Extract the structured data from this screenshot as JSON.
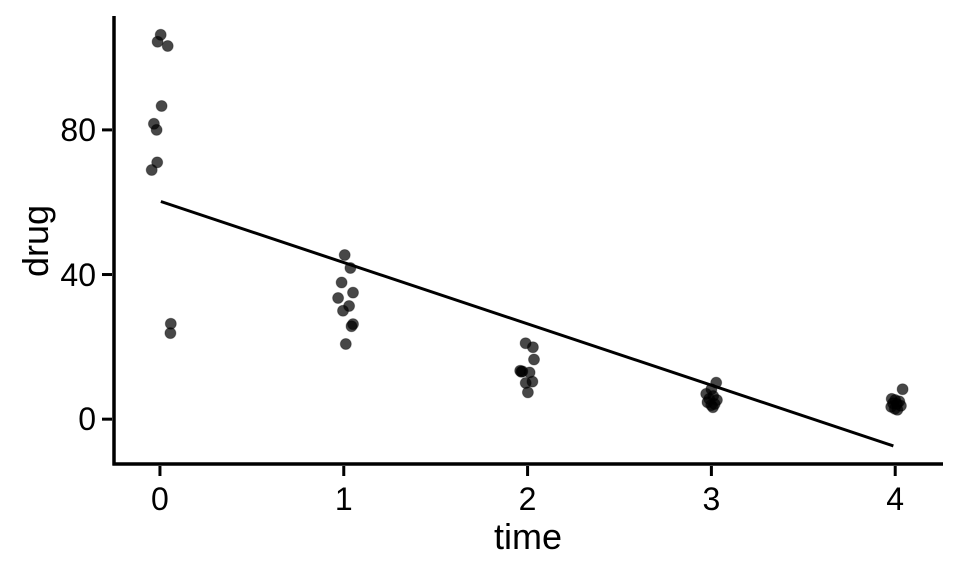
{
  "figure": {
    "background": "#ffffff"
  },
  "chart_data": {
    "type": "scatter",
    "title": "",
    "xlabel": "time",
    "ylabel": "drug",
    "x_ticks": [
      0,
      1,
      2,
      3,
      4
    ],
    "y_ticks": [
      0,
      40,
      80
    ],
    "xlim": [
      -0.25,
      4.26
    ],
    "ylim": [
      -12.4,
      111.5
    ],
    "grid": "off",
    "legend": "none",
    "axis_color": "#000000",
    "label_color": "#000000",
    "point_color": "#000000",
    "point_opacity": 0.72,
    "point_radius": 5.5,
    "fit_line": {
      "x1": 0.005,
      "y1": 60.2,
      "x2": 3.99,
      "y2": -7.4,
      "color": "#000000",
      "width": 3
    },
    "points": [
      [
        0.004,
        106.3
      ],
      [
        -0.013,
        104.4
      ],
      [
        0.042,
        103.2
      ],
      [
        0.009,
        86.6
      ],
      [
        -0.033,
        81.7
      ],
      [
        -0.018,
        80.0
      ],
      [
        -0.015,
        71.0
      ],
      [
        -0.045,
        68.9
      ],
      [
        0.059,
        26.4
      ],
      [
        0.057,
        23.8
      ],
      [
        1.005,
        45.4
      ],
      [
        1.036,
        41.8
      ],
      [
        0.988,
        37.8
      ],
      [
        1.05,
        35.0
      ],
      [
        0.969,
        33.5
      ],
      [
        1.029,
        31.3
      ],
      [
        0.996,
        30.0
      ],
      [
        1.05,
        26.3
      ],
      [
        1.042,
        25.7
      ],
      [
        1.011,
        20.8
      ],
      [
        1.989,
        21.0
      ],
      [
        2.029,
        19.9
      ],
      [
        2.035,
        16.5
      ],
      [
        1.96,
        13.4
      ],
      [
        1.972,
        13.2
      ],
      [
        1.966,
        13.1
      ],
      [
        2.011,
        12.9
      ],
      [
        2.026,
        10.4
      ],
      [
        1.99,
        10.0
      ],
      [
        2.002,
        7.4
      ],
      [
        3.026,
        10.1
      ],
      [
        3.0,
        8.3
      ],
      [
        2.972,
        7.0
      ],
      [
        3.01,
        6.4
      ],
      [
        2.988,
        5.6
      ],
      [
        3.03,
        5.3
      ],
      [
        2.979,
        4.7
      ],
      [
        3.018,
        4.2
      ],
      [
        2.999,
        3.9
      ],
      [
        3.008,
        3.3
      ],
      [
        4.04,
        8.3
      ],
      [
        3.981,
        5.6
      ],
      [
        4.0,
        5.3
      ],
      [
        4.022,
        4.9
      ],
      [
        3.988,
        4.4
      ],
      [
        4.01,
        4.2
      ],
      [
        4.031,
        3.7
      ],
      [
        3.978,
        3.4
      ],
      [
        3.998,
        2.9
      ],
      [
        4.012,
        2.6
      ]
    ]
  }
}
